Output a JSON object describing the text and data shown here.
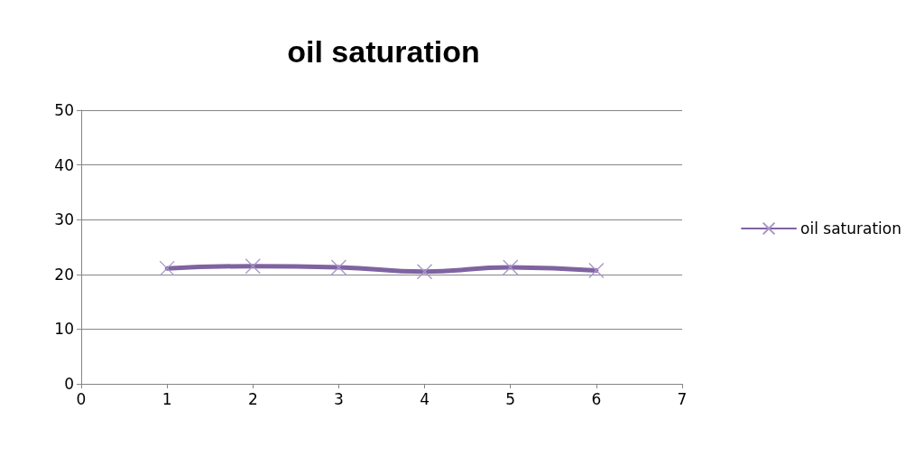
{
  "chart_data": {
    "type": "line",
    "title": "oil saturation",
    "x": [
      1,
      2,
      3,
      4,
      5,
      6
    ],
    "series": [
      {
        "name": "oil saturation",
        "color": "#7f63a1",
        "values": [
          21.1,
          21.5,
          21.3,
          20.5,
          21.3,
          20.7
        ]
      }
    ],
    "xlim": [
      0,
      7
    ],
    "xticks": [
      0,
      1,
      2,
      3,
      4,
      5,
      6,
      7
    ],
    "ylim": [
      0,
      50
    ],
    "yticks": [
      0,
      10,
      20,
      30,
      40,
      50
    ],
    "grid": "y",
    "legend": "right",
    "marker": "cross",
    "line_style": "solid"
  }
}
